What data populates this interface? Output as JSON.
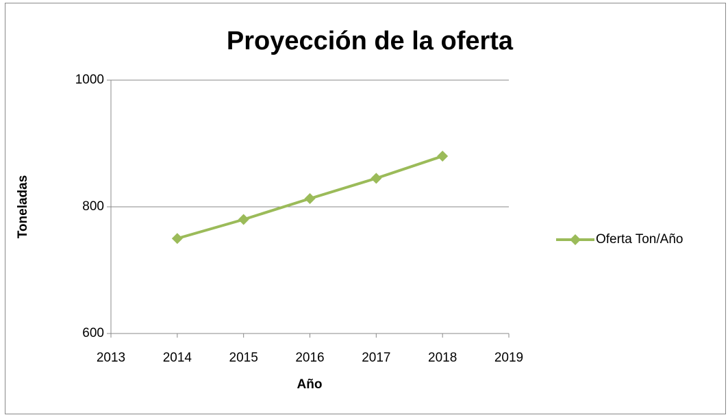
{
  "chart_data": {
    "type": "line",
    "title": "Proyección de la oferta",
    "x_label": "Año",
    "y_label": "Toneladas",
    "x": [
      2014,
      2015,
      2016,
      2017,
      2018
    ],
    "series": [
      {
        "name": "Oferta Ton/Año",
        "color": "#9bbb59",
        "values": [
          750,
          780,
          813,
          845,
          880
        ]
      }
    ],
    "xlim": [
      2013,
      2019
    ],
    "xticks": [
      2013,
      2014,
      2015,
      2016,
      2017,
      2018,
      2019
    ],
    "ylim": [
      600,
      1000
    ],
    "yticks": [
      600,
      800,
      1000
    ],
    "grid": true,
    "legend": "right"
  }
}
